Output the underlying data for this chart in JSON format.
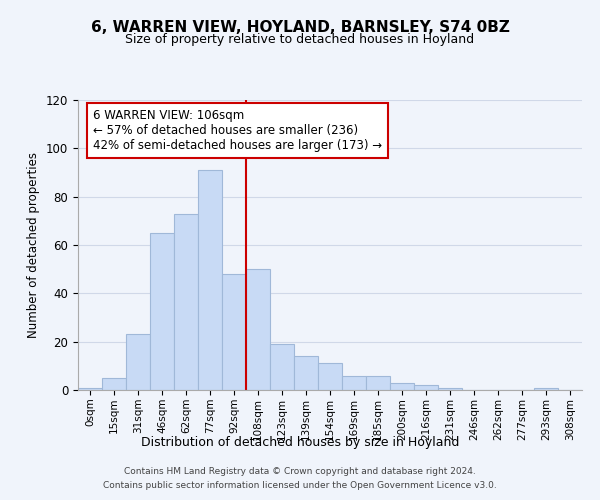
{
  "title": "6, WARREN VIEW, HOYLAND, BARNSLEY, S74 0BZ",
  "subtitle": "Size of property relative to detached houses in Hoyland",
  "xlabel": "Distribution of detached houses by size in Hoyland",
  "ylabel": "Number of detached properties",
  "bar_labels": [
    "0sqm",
    "15sqm",
    "31sqm",
    "46sqm",
    "62sqm",
    "77sqm",
    "92sqm",
    "108sqm",
    "123sqm",
    "139sqm",
    "154sqm",
    "169sqm",
    "185sqm",
    "200sqm",
    "216sqm",
    "231sqm",
    "246sqm",
    "262sqm",
    "277sqm",
    "293sqm",
    "308sqm"
  ],
  "bar_heights": [
    1,
    5,
    23,
    65,
    73,
    91,
    48,
    50,
    19,
    14,
    11,
    6,
    6,
    3,
    2,
    1,
    0,
    0,
    0,
    1,
    0
  ],
  "bar_color": "#c8daf5",
  "bar_edge_color": "#a0b8d8",
  "vline_x": 7,
  "vline_color": "#cc0000",
  "annotation_title": "6 WARREN VIEW: 106sqm",
  "annotation_line1": "← 57% of detached houses are smaller (236)",
  "annotation_line2": "42% of semi-detached houses are larger (173) →",
  "annotation_box_color": "#ffffff",
  "annotation_box_edge": "#cc0000",
  "ylim": [
    0,
    120
  ],
  "yticks": [
    0,
    20,
    40,
    60,
    80,
    100,
    120
  ],
  "grid_color": "#d0d8e8",
  "footnote1": "Contains HM Land Registry data © Crown copyright and database right 2024.",
  "footnote2": "Contains public sector information licensed under the Open Government Licence v3.0.",
  "bg_color": "#f0f4fb"
}
